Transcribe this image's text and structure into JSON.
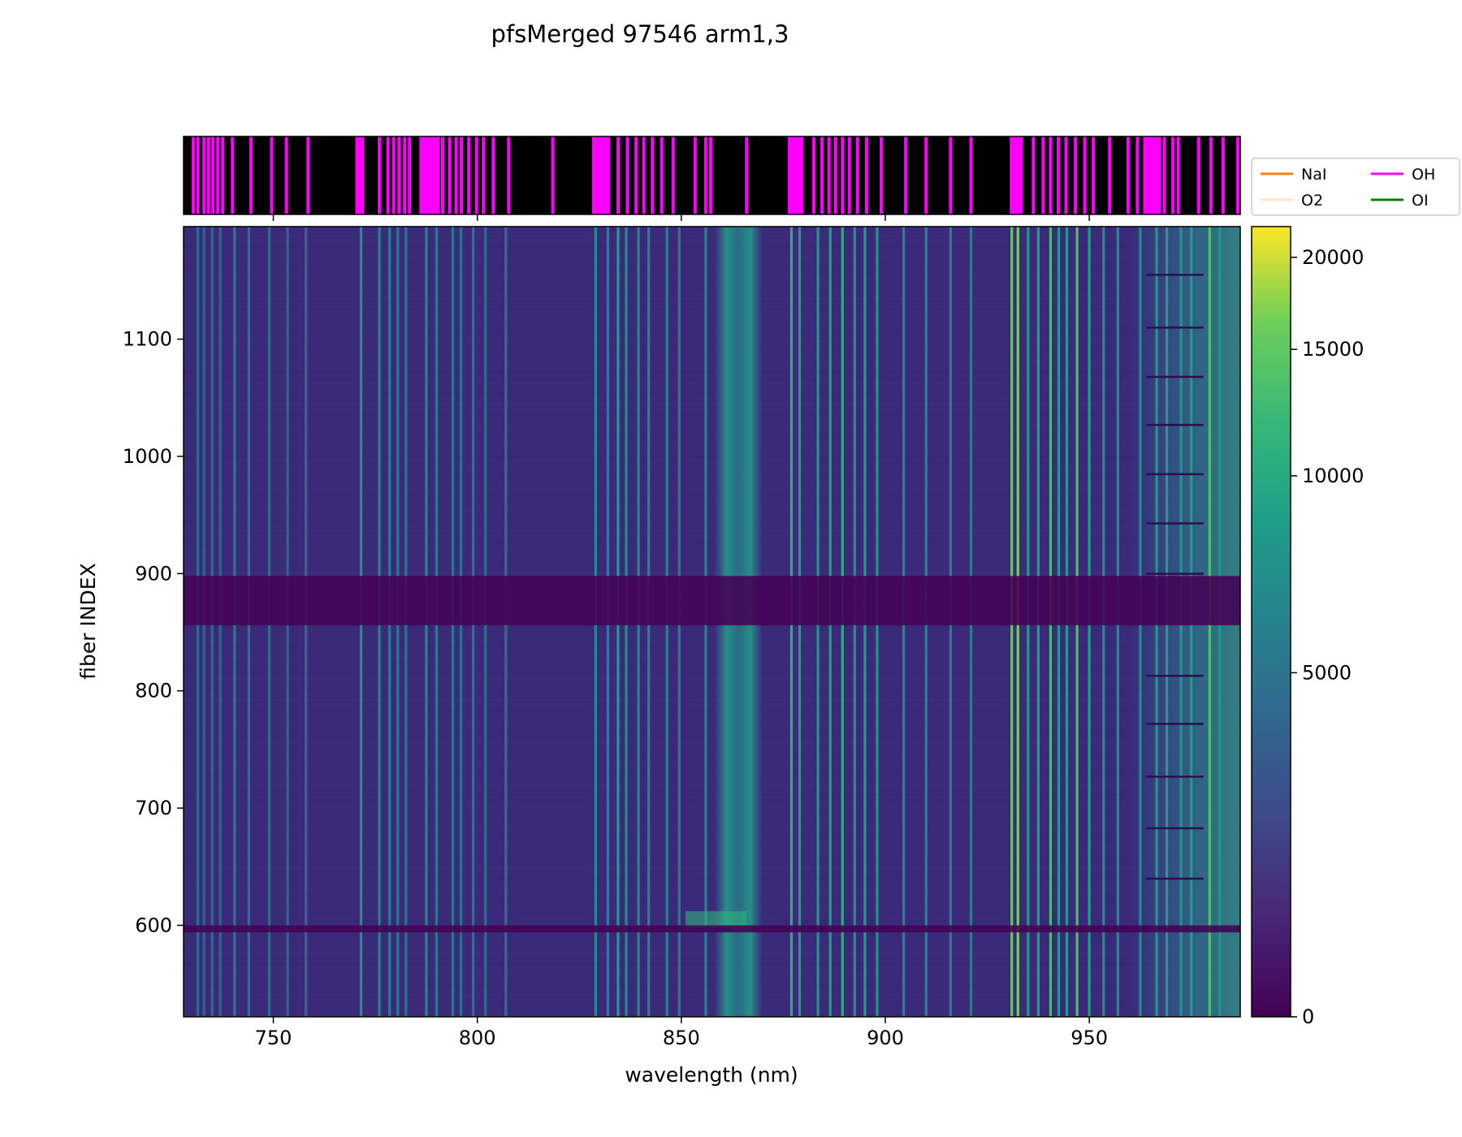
{
  "chart_data": {
    "type": "heatmap",
    "title": "pfsMerged  97546 arm1,3",
    "xlabel": "wavelength (nm)",
    "ylabel": "fiber INDEX",
    "xlim": [
      728,
      987
    ],
    "ylim": [
      522,
      1196
    ],
    "x_ticks": [
      750,
      800,
      850,
      900,
      950
    ],
    "y_ticks": [
      600,
      700,
      800,
      900,
      1000,
      1100
    ],
    "colormap": "viridis",
    "colorbar": {
      "range": [
        0,
        22000
      ],
      "ticks": [
        0,
        5000,
        10000,
        15000,
        20000
      ]
    },
    "colors": {
      "low": "#440154",
      "background": "#3b2a7a",
      "mid": "#21918c",
      "high": "#fde725",
      "line_strip_bg": "#000000",
      "oh_mark": "#ff00ff"
    },
    "gap_rows": [
      [
        856,
        898
      ],
      [
        594,
        600
      ]
    ],
    "broad_band": [
      858,
      870
    ],
    "lines": [
      {
        "nm": 731.5,
        "v": 0.4
      },
      {
        "nm": 733.0,
        "v": 0.35
      },
      {
        "nm": 735.0,
        "v": 0.38
      },
      {
        "nm": 737.0,
        "v": 0.36
      },
      {
        "nm": 740.5,
        "v": 0.45
      },
      {
        "nm": 744.0,
        "v": 0.42
      },
      {
        "nm": 749.0,
        "v": 0.4
      },
      {
        "nm": 753.5,
        "v": 0.36
      },
      {
        "nm": 758.0,
        "v": 0.38
      },
      {
        "nm": 771.5,
        "v": 0.55
      },
      {
        "nm": 776.0,
        "v": 0.48
      },
      {
        "nm": 778.5,
        "v": 0.46
      },
      {
        "nm": 780.5,
        "v": 0.44
      },
      {
        "nm": 782.5,
        "v": 0.42
      },
      {
        "nm": 787.5,
        "v": 0.52
      },
      {
        "nm": 790.0,
        "v": 0.45
      },
      {
        "nm": 794.0,
        "v": 0.44
      },
      {
        "nm": 796.0,
        "v": 0.42
      },
      {
        "nm": 799.0,
        "v": 0.42
      },
      {
        "nm": 802.0,
        "v": 0.4
      },
      {
        "nm": 807.0,
        "v": 0.4
      },
      {
        "nm": 829.0,
        "v": 0.55
      },
      {
        "nm": 832.0,
        "v": 0.5
      },
      {
        "nm": 834.5,
        "v": 0.62
      },
      {
        "nm": 836.5,
        "v": 0.55
      },
      {
        "nm": 839.5,
        "v": 0.52
      },
      {
        "nm": 842.0,
        "v": 0.5
      },
      {
        "nm": 846.5,
        "v": 0.48
      },
      {
        "nm": 849.5,
        "v": 0.46
      },
      {
        "nm": 856.0,
        "v": 0.5
      },
      {
        "nm": 877.0,
        "v": 0.7
      },
      {
        "nm": 879.0,
        "v": 0.6
      },
      {
        "nm": 883.5,
        "v": 0.58
      },
      {
        "nm": 886.5,
        "v": 0.62
      },
      {
        "nm": 889.5,
        "v": 0.7
      },
      {
        "nm": 892.5,
        "v": 0.56
      },
      {
        "nm": 895.0,
        "v": 0.62
      },
      {
        "nm": 898.0,
        "v": 0.58
      },
      {
        "nm": 904.5,
        "v": 0.5
      },
      {
        "nm": 910.0,
        "v": 0.52
      },
      {
        "nm": 916.0,
        "v": 0.48
      },
      {
        "nm": 921.0,
        "v": 0.46
      },
      {
        "nm": 931.0,
        "v": 0.85
      },
      {
        "nm": 932.5,
        "v": 0.88
      },
      {
        "nm": 935.0,
        "v": 0.6
      },
      {
        "nm": 937.5,
        "v": 0.62
      },
      {
        "nm": 940.5,
        "v": 0.78
      },
      {
        "nm": 942.5,
        "v": 0.6
      },
      {
        "nm": 944.5,
        "v": 0.62
      },
      {
        "nm": 947.0,
        "v": 0.8
      },
      {
        "nm": 950.0,
        "v": 0.62
      },
      {
        "nm": 953.5,
        "v": 0.55
      },
      {
        "nm": 957.0,
        "v": 0.55
      },
      {
        "nm": 962.5,
        "v": 0.55
      },
      {
        "nm": 966.5,
        "v": 0.6
      },
      {
        "nm": 969.0,
        "v": 0.62
      },
      {
        "nm": 972.5,
        "v": 0.58
      },
      {
        "nm": 975.0,
        "v": 0.62
      },
      {
        "nm": 979.5,
        "v": 0.8
      },
      {
        "nm": 982.0,
        "v": 0.6
      }
    ],
    "oh_marks_nm": [
      730.4,
      731.5,
      733.0,
      734.1,
      735.2,
      736.4,
      737.6,
      740.0,
      744.5,
      749.6,
      753.2,
      758.5,
      770.5,
      771.2,
      771.9,
      776.0,
      778.1,
      779.5,
      780.8,
      782.2,
      783.4,
      786.2,
      786.9,
      787.6,
      788.3,
      789.0,
      789.7,
      790.4,
      791.5,
      793.2,
      794.8,
      796.1,
      797.9,
      799.8,
      801.5,
      803.9,
      807.7,
      818.5,
      828.5,
      829.1,
      829.7,
      830.3,
      830.9,
      831.5,
      832.1,
      834.5,
      836.8,
      838.9,
      840.8,
      842.9,
      845.2,
      848.0,
      853.4,
      856.0,
      857.2,
      866.0,
      876.5,
      877.1,
      877.7,
      878.3,
      878.9,
      879.5,
      882.5,
      884.5,
      886.2,
      887.8,
      889.5,
      891.2,
      893.2,
      895.4,
      899.0,
      905.0,
      910.0,
      916.0,
      921.0,
      930.9,
      931.5,
      932.1,
      932.7,
      933.3,
      936.3,
      938.7,
      940.5,
      942.4,
      944.3,
      946.6,
      948.9,
      951.0,
      955.0,
      959.5,
      961.8,
      963.6,
      964.2,
      964.8,
      965.4,
      966.0,
      966.6,
      967.2,
      968.4,
      970.5,
      971.8,
      976.8,
      979.8,
      982.8,
      986.4
    ],
    "legend": {
      "placement": "right-of-top-panel",
      "entries": [
        {
          "label": "NaI",
          "color": "#ff7f0e"
        },
        {
          "label": "O2",
          "color": "#ffe4c4"
        },
        {
          "label": "OH",
          "color": "#ff00ff"
        },
        {
          "label": "OI",
          "color": "#008000"
        }
      ]
    }
  }
}
